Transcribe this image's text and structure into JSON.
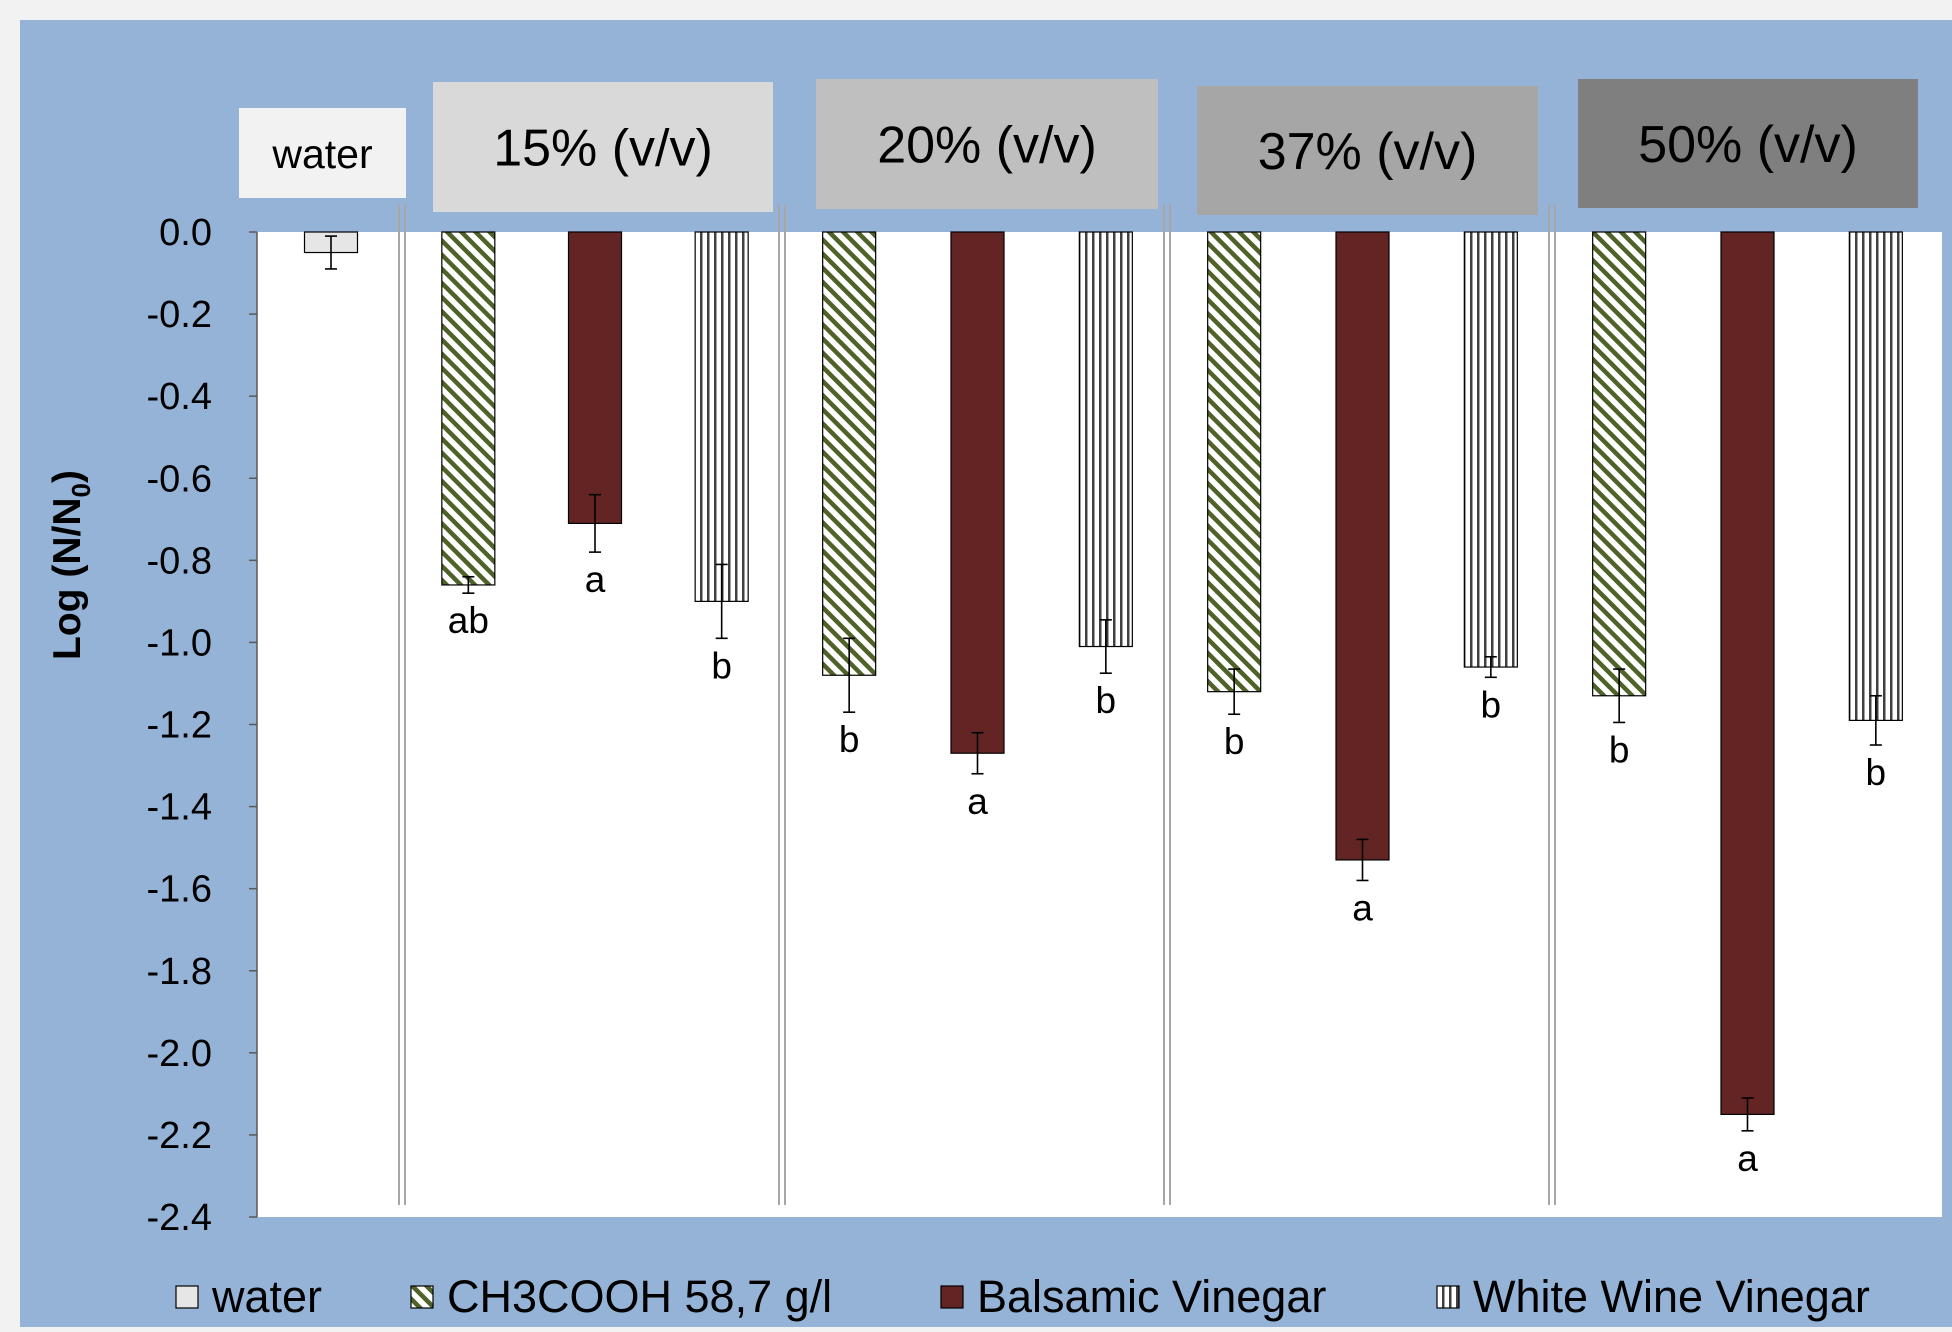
{
  "colors": {
    "page": "#f2f2f2",
    "panel": "#95b3d7",
    "plot": "#ffffff",
    "water_fill": "#e6e6e6",
    "ch3cooh_stripe": "#4f6228",
    "balsamic_fill": "#632523",
    "white_wine_stripe": "#404040",
    "header_water": "#f2f2f2",
    "header_15": "#d9d9d9",
    "header_20": "#bfbfbf",
    "header_37": "#a6a6a6",
    "header_50": "#7f7f7f"
  },
  "chart_data": {
    "type": "bar",
    "title": "",
    "xlabel": "",
    "ylabel": "Log (N/N0)",
    "ylabel_main": "Log (N/N",
    "ylabel_sub": "0",
    "ylabel_close": ")",
    "ylim": [
      -2.4,
      0.0
    ],
    "yticks": [
      0.0,
      -0.2,
      -0.4,
      -0.6,
      -0.8,
      -1.0,
      -1.2,
      -1.4,
      -1.6,
      -1.8,
      -2.0,
      -2.2,
      -2.4
    ],
    "ytick_labels": [
      "0.0",
      "-0.2",
      "-0.4",
      "-0.6",
      "-0.8",
      "-1.0",
      "-1.2",
      "-1.4",
      "-1.6",
      "-1.8",
      "-2.0",
      "-2.2",
      "-2.4"
    ],
    "grid": false,
    "legend_position": "bottom",
    "groups": [
      {
        "label": "water",
        "header_color_key": "header_water",
        "bars": [
          {
            "series": "water",
            "value": -0.05,
            "error": 0.04,
            "letter": ""
          }
        ]
      },
      {
        "label": "15% (v/v)",
        "header_color_key": "header_15",
        "bars": [
          {
            "series": "CH3COOH 58,7 g/l",
            "value": -0.86,
            "error": 0.02,
            "letter": "ab"
          },
          {
            "series": "Balsamic Vinegar",
            "value": -0.71,
            "error": 0.07,
            "letter": "a"
          },
          {
            "series": "White Wine Vinegar",
            "value": -0.9,
            "error": 0.09,
            "letter": "b"
          }
        ]
      },
      {
        "label": "20% (v/v)",
        "header_color_key": "header_20",
        "bars": [
          {
            "series": "CH3COOH 58,7 g/l",
            "value": -1.08,
            "error": 0.09,
            "letter": "b"
          },
          {
            "series": "Balsamic Vinegar",
            "value": -1.27,
            "error": 0.05,
            "letter": "a"
          },
          {
            "series": "White Wine Vinegar",
            "value": -1.01,
            "error": 0.065,
            "letter": "b"
          }
        ]
      },
      {
        "label": "37% (v/v)",
        "header_color_key": "header_37",
        "bars": [
          {
            "series": "CH3COOH 58,7 g/l",
            "value": -1.12,
            "error": 0.055,
            "letter": "b"
          },
          {
            "series": "Balsamic Vinegar",
            "value": -1.53,
            "error": 0.05,
            "letter": "a"
          },
          {
            "series": "White Wine Vinegar",
            "value": -1.06,
            "error": 0.025,
            "letter": "b"
          }
        ]
      },
      {
        "label": "50% (v/v)",
        "header_color_key": "header_50",
        "bars": [
          {
            "series": "CH3COOH 58,7 g/l",
            "value": -1.13,
            "error": 0.065,
            "letter": "b"
          },
          {
            "series": "Balsamic Vinegar",
            "value": -2.15,
            "error": 0.04,
            "letter": "a"
          },
          {
            "series": "White Wine Vinegar",
            "value": -1.19,
            "error": 0.06,
            "letter": "b"
          }
        ]
      }
    ],
    "series": [
      {
        "name": "water",
        "pattern": "solid-light"
      },
      {
        "name": "CH3COOH 58,7 g/l",
        "pattern": "diagonal-stripes"
      },
      {
        "name": "Balsamic Vinegar",
        "pattern": "solid-dark"
      },
      {
        "name": "White Wine Vinegar",
        "pattern": "vertical-stripes"
      }
    ]
  }
}
